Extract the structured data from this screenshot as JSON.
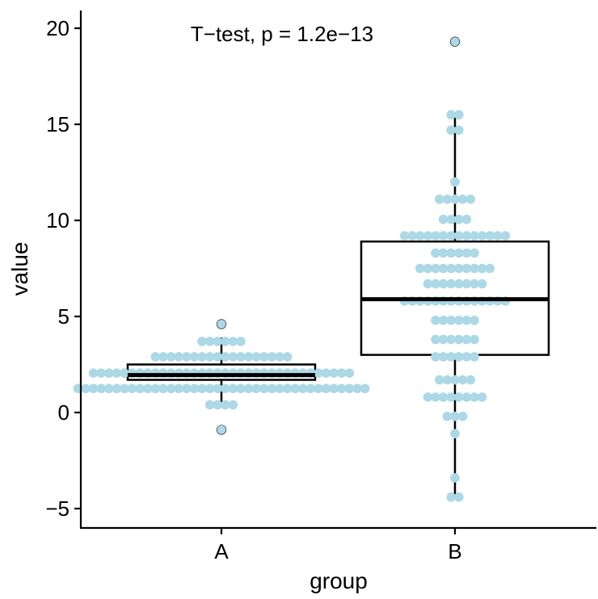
{
  "chart_data": {
    "type": "boxplot-dotplot",
    "title": "",
    "annotation": "T−test, p = 1.2e−13",
    "xlabel": "group",
    "ylabel": "value",
    "categories": [
      "A",
      "B"
    ],
    "ylim": [
      -6,
      20.9
    ],
    "yticks": [
      -5,
      0,
      5,
      10,
      15,
      20
    ],
    "ytick_labels": [
      "−5",
      "0",
      "5",
      "10",
      "15",
      "20"
    ],
    "dot_color": "#add8e6",
    "boxes": [
      {
        "group": "A",
        "min": 0.4,
        "q1": 1.7,
        "median": 1.95,
        "q3": 2.5,
        "max": 3.9,
        "outliers": [
          4.6,
          -0.9
        ]
      },
      {
        "group": "B",
        "min": -4.4,
        "q1": 3.0,
        "median": 5.9,
        "q3": 8.9,
        "max": 15.5,
        "outliers": [
          19.3
        ]
      }
    ],
    "dot_stacks": [
      {
        "group": "A",
        "value": 3.7,
        "count": 6
      },
      {
        "group": "A",
        "value": 2.9,
        "count": 18
      },
      {
        "group": "A",
        "value": 2.05,
        "count": 34
      },
      {
        "group": "A",
        "value": 1.25,
        "count": 38
      },
      {
        "group": "A",
        "value": 0.4,
        "count": 4
      },
      {
        "group": "B",
        "value": 15.5,
        "count": 2
      },
      {
        "group": "B",
        "value": 14.7,
        "count": 2
      },
      {
        "group": "B",
        "value": 12.0,
        "count": 1
      },
      {
        "group": "B",
        "value": 11.1,
        "count": 5
      },
      {
        "group": "B",
        "value": 10.05,
        "count": 4
      },
      {
        "group": "B",
        "value": 9.2,
        "count": 14
      },
      {
        "group": "B",
        "value": 8.3,
        "count": 6
      },
      {
        "group": "B",
        "value": 7.5,
        "count": 10
      },
      {
        "group": "B",
        "value": 6.7,
        "count": 8
      },
      {
        "group": "B",
        "value": 5.8,
        "count": 14
      },
      {
        "group": "B",
        "value": 4.8,
        "count": 6
      },
      {
        "group": "B",
        "value": 3.8,
        "count": 6
      },
      {
        "group": "B",
        "value": 2.9,
        "count": 6
      },
      {
        "group": "B",
        "value": 1.7,
        "count": 5
      },
      {
        "group": "B",
        "value": 0.8,
        "count": 8
      },
      {
        "group": "B",
        "value": -0.2,
        "count": 3
      },
      {
        "group": "B",
        "value": -1.1,
        "count": 1
      },
      {
        "group": "B",
        "value": -3.4,
        "count": 1
      },
      {
        "group": "B",
        "value": -4.4,
        "count": 2
      }
    ]
  }
}
